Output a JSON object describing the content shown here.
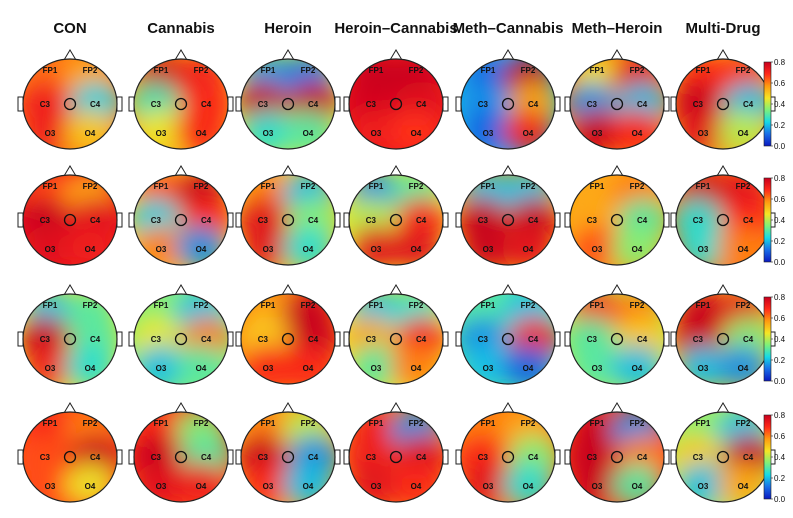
{
  "columns": [
    "CON",
    "Cannabis",
    "Heroin",
    "Heroin–Cannabis",
    "Meth–Cannabis",
    "Meth–Heroin",
    "Multi-Drug"
  ],
  "electrodes": [
    "FP1",
    "FP2",
    "C3",
    "C4",
    "O3",
    "O4"
  ],
  "colorbar": {
    "ticks": [
      "0.8",
      "0.6",
      "0.4",
      "0.2",
      "0.0"
    ],
    "stops": [
      "#c8001e",
      "#ff2a1a",
      "#ff9a10",
      "#f6e524",
      "#7df07a",
      "#16d9e6",
      "#1a6ee8",
      "#0a18c0"
    ]
  },
  "maps": [
    [
      {
        "base": 0.6,
        "e": [
          0.62,
          0.55,
          0.72,
          0.22,
          0.72,
          0.5
        ]
      },
      {
        "base": 0.55,
        "e": [
          0.8,
          0.72,
          0.28,
          0.7,
          0.45,
          0.7
        ]
      },
      {
        "base": 0.42,
        "e": [
          0.15,
          0.12,
          0.82,
          0.82,
          0.25,
          0.3
        ]
      },
      {
        "base": 0.72,
        "e": [
          0.8,
          0.8,
          0.78,
          0.75,
          0.72,
          0.68
        ]
      },
      {
        "base": 0.2,
        "e": [
          0.1,
          0.85,
          0.15,
          0.55,
          0.1,
          0.7
        ]
      },
      {
        "base": 0.6,
        "e": [
          0.45,
          0.75,
          0.15,
          0.2,
          0.8,
          0.7
        ]
      },
      {
        "base": 0.55,
        "e": [
          0.7,
          0.7,
          0.82,
          0.2,
          0.75,
          0.4
        ]
      }
    ],
    [
      {
        "base": 0.72,
        "e": [
          0.65,
          0.55,
          0.8,
          0.75,
          0.75,
          0.72
        ]
      },
      {
        "base": 0.5,
        "e": [
          0.65,
          0.85,
          0.22,
          0.7,
          0.6,
          0.15
        ]
      },
      {
        "base": 0.5,
        "e": [
          0.6,
          0.2,
          0.75,
          0.35,
          0.75,
          0.25
        ]
      },
      {
        "base": 0.45,
        "e": [
          0.15,
          0.3,
          0.4,
          0.7,
          0.75,
          0.75
        ]
      },
      {
        "base": 0.55,
        "e": [
          0.2,
          0.2,
          0.8,
          0.8,
          0.8,
          0.75
        ]
      },
      {
        "base": 0.55,
        "e": [
          0.55,
          0.6,
          0.55,
          0.3,
          0.65,
          0.35
        ]
      },
      {
        "base": 0.6,
        "e": [
          0.8,
          0.75,
          0.25,
          0.7,
          0.25,
          0.6
        ]
      }
    ],
    [
      {
        "base": 0.45,
        "e": [
          0.2,
          0.3,
          0.8,
          0.3,
          0.72,
          0.25
        ]
      },
      {
        "base": 0.35,
        "e": [
          0.35,
          0.2,
          0.45,
          0.6,
          0.2,
          0.3
        ]
      },
      {
        "base": 0.6,
        "e": [
          0.55,
          0.8,
          0.5,
          0.82,
          0.7,
          0.7
        ]
      },
      {
        "base": 0.45,
        "e": [
          0.2,
          0.25,
          0.55,
          0.7,
          0.3,
          0.6
        ]
      },
      {
        "base": 0.3,
        "e": [
          0.3,
          0.2,
          0.15,
          0.7,
          0.2,
          0.1
        ]
      },
      {
        "base": 0.4,
        "e": [
          0.7,
          0.6,
          0.3,
          0.5,
          0.3,
          0.2
        ]
      },
      {
        "base": 0.5,
        "e": [
          0.8,
          0.75,
          0.82,
          0.35,
          0.2,
          0.15
        ]
      }
    ],
    [
      {
        "base": 0.65,
        "e": [
          0.7,
          0.6,
          0.65,
          0.82,
          0.65,
          0.45
        ]
      },
      {
        "base": 0.65,
        "e": [
          0.7,
          0.35,
          0.82,
          0.3,
          0.75,
          0.72
        ]
      },
      {
        "base": 0.55,
        "e": [
          0.6,
          0.4,
          0.85,
          0.15,
          0.7,
          0.2
        ]
      },
      {
        "base": 0.6,
        "e": [
          0.72,
          0.15,
          0.72,
          0.75,
          0.75,
          0.7
        ]
      },
      {
        "base": 0.6,
        "e": [
          0.6,
          0.55,
          0.7,
          0.35,
          0.75,
          0.25
        ]
      },
      {
        "base": 0.65,
        "e": [
          0.8,
          0.15,
          0.82,
          0.6,
          0.82,
          0.3
        ]
      },
      {
        "base": 0.4,
        "e": [
          0.35,
          0.2,
          0.5,
          0.8,
          0.2,
          0.55
        ]
      }
    ]
  ]
}
